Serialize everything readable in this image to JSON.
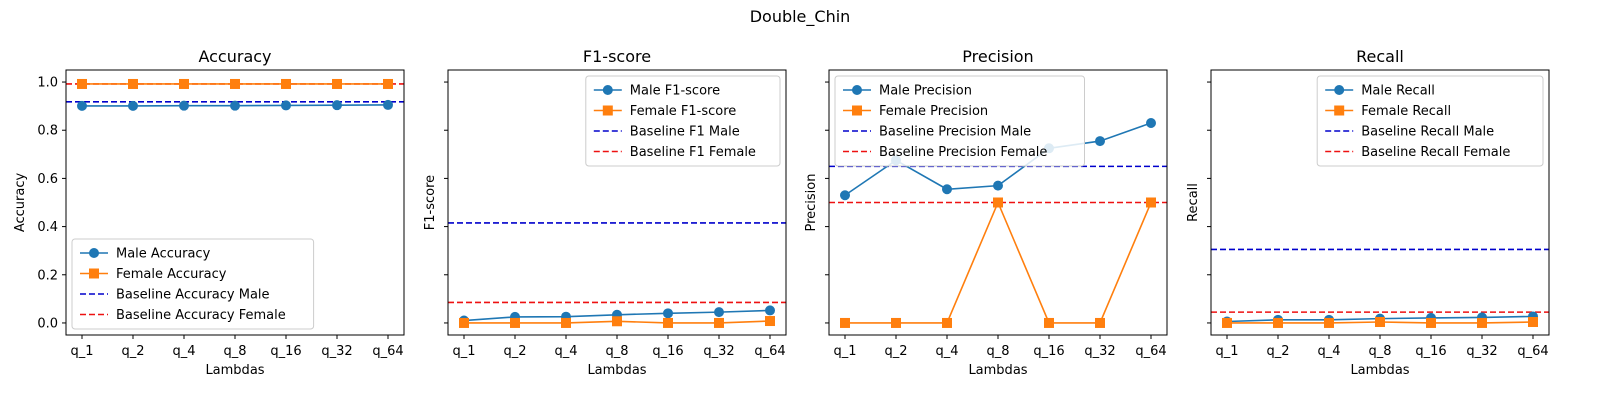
{
  "figure": {
    "suptitle": "Double_Chin"
  },
  "colors": {
    "male": "#1f77b4",
    "female": "#ff7f0e",
    "baseline_male": "#0000cc",
    "baseline_female": "#ee1111"
  },
  "chart_data": [
    {
      "type": "line",
      "title": "Accuracy",
      "xlabel": "Lambdas",
      "ylabel": "Accuracy",
      "categories": [
        "q_1",
        "q_2",
        "q_4",
        "q_8",
        "q_16",
        "q_32",
        "q_64"
      ],
      "ylim": [
        -0.05,
        1.05
      ],
      "yticks": [
        "0.0",
        "0.2",
        "0.4",
        "0.6",
        "0.8",
        "1.0"
      ],
      "show_ytick_labels": true,
      "legend_position": "lower-left",
      "series": [
        {
          "name": "Male Accuracy",
          "marker": "circle",
          "values": [
            0.901,
            0.901,
            0.902,
            0.902,
            0.903,
            0.904,
            0.905
          ]
        },
        {
          "name": "Female Accuracy",
          "marker": "square",
          "values": [
            0.992,
            0.992,
            0.992,
            0.992,
            0.992,
            0.992,
            0.992
          ]
        }
      ],
      "baselines": [
        {
          "name": "Baseline Accuracy Male",
          "value": 0.918,
          "color": "male"
        },
        {
          "name": "Baseline Accuracy Female",
          "value": 0.992,
          "color": "female"
        }
      ]
    },
    {
      "type": "line",
      "title": "F1-score",
      "xlabel": "Lambdas",
      "ylabel": "F1-score",
      "categories": [
        "q_1",
        "q_2",
        "q_4",
        "q_8",
        "q_16",
        "q_32",
        "q_64"
      ],
      "ylim": [
        -0.05,
        1.05
      ],
      "yticks": [
        "0.0",
        "0.2",
        "0.4",
        "0.6",
        "0.8",
        "1.0"
      ],
      "show_ytick_labels": false,
      "legend_position": "top-right",
      "series": [
        {
          "name": "Male F1-score",
          "marker": "circle",
          "values": [
            0.01,
            0.025,
            0.026,
            0.034,
            0.04,
            0.045,
            0.052
          ]
        },
        {
          "name": "Female F1-score",
          "marker": "square",
          "values": [
            0.0,
            0.0,
            0.0,
            0.007,
            0.0,
            0.0,
            0.008
          ]
        }
      ],
      "baselines": [
        {
          "name": "Baseline F1 Male",
          "value": 0.415,
          "color": "male"
        },
        {
          "name": "Baseline F1 Female",
          "value": 0.085,
          "color": "female"
        }
      ]
    },
    {
      "type": "line",
      "title": "Precision",
      "xlabel": "Lambdas",
      "ylabel": "Precision",
      "categories": [
        "q_1",
        "q_2",
        "q_4",
        "q_8",
        "q_16",
        "q_32",
        "q_64"
      ],
      "ylim": [
        -0.05,
        1.05
      ],
      "yticks": [
        "0.0",
        "0.2",
        "0.4",
        "0.6",
        "0.8",
        "1.0"
      ],
      "show_ytick_labels": false,
      "legend_position": "top-left",
      "series": [
        {
          "name": "Male Precision",
          "marker": "circle",
          "values": [
            0.53,
            0.675,
            0.555,
            0.57,
            0.725,
            0.755,
            0.83
          ]
        },
        {
          "name": "Female Precision",
          "marker": "square",
          "values": [
            0.0,
            0.0,
            0.0,
            0.5,
            0.0,
            0.0,
            0.5
          ]
        }
      ],
      "baselines": [
        {
          "name": "Baseline Precision Male",
          "value": 0.65,
          "color": "male"
        },
        {
          "name": "Baseline Precision Female",
          "value": 0.5,
          "color": "female"
        }
      ]
    },
    {
      "type": "line",
      "title": "Recall",
      "xlabel": "Lambdas",
      "ylabel": "Recall",
      "categories": [
        "q_1",
        "q_2",
        "q_4",
        "q_8",
        "q_16",
        "q_32",
        "q_64"
      ],
      "ylim": [
        -0.05,
        1.05
      ],
      "yticks": [
        "0.0",
        "0.2",
        "0.4",
        "0.6",
        "0.8",
        "1.0"
      ],
      "show_ytick_labels": false,
      "legend_position": "top-right",
      "series": [
        {
          "name": "Male Recall",
          "marker": "circle",
          "values": [
            0.006,
            0.013,
            0.013,
            0.018,
            0.021,
            0.023,
            0.027
          ]
        },
        {
          "name": "Female Recall",
          "marker": "square",
          "values": [
            0.0,
            0.0,
            0.0,
            0.004,
            0.0,
            0.0,
            0.004
          ]
        }
      ],
      "baselines": [
        {
          "name": "Baseline Recall Male",
          "value": 0.305,
          "color": "male"
        },
        {
          "name": "Baseline Recall Female",
          "value": 0.045,
          "color": "female"
        }
      ]
    }
  ]
}
